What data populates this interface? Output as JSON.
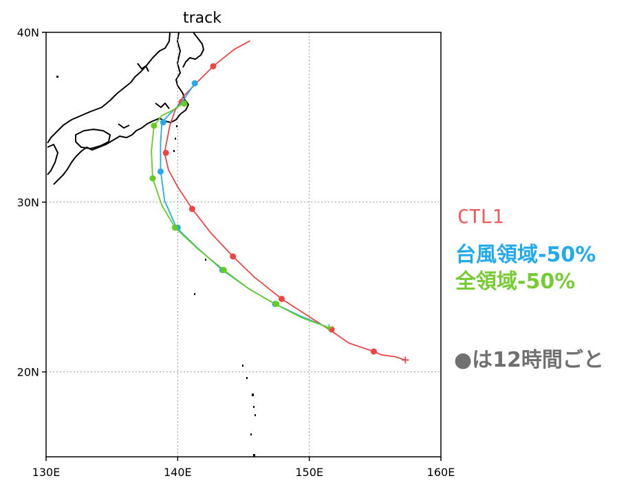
{
  "chart_data": {
    "type": "line",
    "title": "track",
    "xlim": [
      130,
      160
    ],
    "ylim": [
      15,
      40
    ],
    "x_ticks": [
      {
        "value": 130,
        "label": "130E"
      },
      {
        "value": 140,
        "label": "140E"
      },
      {
        "value": 150,
        "label": "150E"
      },
      {
        "value": 160,
        "label": "160E"
      }
    ],
    "y_ticks": [
      {
        "value": 20,
        "label": "20N"
      },
      {
        "value": 30,
        "label": "30N"
      },
      {
        "value": 40,
        "label": "40N"
      }
    ],
    "grid": {
      "x": [
        140,
        150
      ],
      "y": [
        20,
        30
      ],
      "style": "dotted"
    },
    "series": [
      {
        "name": "CTL1",
        "color": "#ee4444",
        "x": [
          157.3,
          156.5,
          155.5,
          154.9,
          153.0,
          151.7,
          149.5,
          147.9,
          145.8,
          144.2,
          142.5,
          141.1,
          140.0,
          139.3,
          139.0,
          139.4,
          139.8,
          140.4,
          141.4,
          142.7,
          144.3,
          145.5
        ],
        "y": [
          20.7,
          20.9,
          21.0,
          21.2,
          21.7,
          22.4,
          23.5,
          24.3,
          25.6,
          26.8,
          28.2,
          29.6,
          30.9,
          31.9,
          32.9,
          34.5,
          35.4,
          36.2,
          37.0,
          38.0,
          39.0,
          39.5
        ],
        "markers": [
          [
            154.9,
            21.2
          ],
          [
            151.7,
            22.5
          ],
          [
            147.9,
            24.3
          ],
          [
            144.2,
            26.8
          ],
          [
            141.1,
            29.6
          ],
          [
            139.1,
            32.9
          ],
          [
            140.3,
            35.9
          ],
          [
            142.7,
            38.0
          ]
        ]
      },
      {
        "name": "台風領域-50%",
        "color": "#22aaee",
        "x": [
          151.5,
          149.3,
          147.4,
          145.4,
          143.4,
          141.5,
          139.9,
          139.0,
          138.7,
          138.7,
          138.8,
          139.4,
          140.1,
          140.6,
          141.3
        ],
        "y": [
          22.6,
          23.3,
          24.0,
          24.9,
          26.0,
          27.3,
          28.5,
          30.1,
          31.9,
          33.5,
          34.7,
          35.2,
          35.7,
          36.2,
          37.0
        ],
        "markers": [
          [
            147.4,
            24.0
          ],
          [
            143.4,
            26.0
          ],
          [
            140.0,
            28.5
          ],
          [
            138.7,
            31.8
          ],
          [
            138.9,
            34.7
          ],
          [
            141.3,
            37.0
          ]
        ]
      },
      {
        "name": "全領域-50%",
        "color": "#66cc22",
        "x": [
          151.5,
          149.4,
          147.4,
          145.4,
          143.5,
          141.6,
          139.8,
          138.8,
          138.1,
          138.0,
          138.2,
          138.8,
          139.6,
          140.2,
          140.6
        ],
        "y": [
          22.6,
          23.2,
          24.0,
          24.9,
          26.0,
          27.2,
          28.5,
          29.8,
          31.4,
          33.0,
          34.5,
          35.1,
          35.4,
          35.7,
          36.0
        ],
        "markers": [
          [
            147.5,
            24.0
          ],
          [
            143.5,
            26.0
          ],
          [
            139.8,
            28.5
          ],
          [
            138.1,
            31.4
          ],
          [
            138.2,
            34.5
          ],
          [
            140.5,
            35.8
          ]
        ]
      }
    ],
    "legend_placement": "right"
  },
  "legend": {
    "ctl1": "CTL1",
    "tc_region": "台風領域-50%",
    "all_region": "全領域-50%"
  },
  "note": "●は12時間ごと"
}
